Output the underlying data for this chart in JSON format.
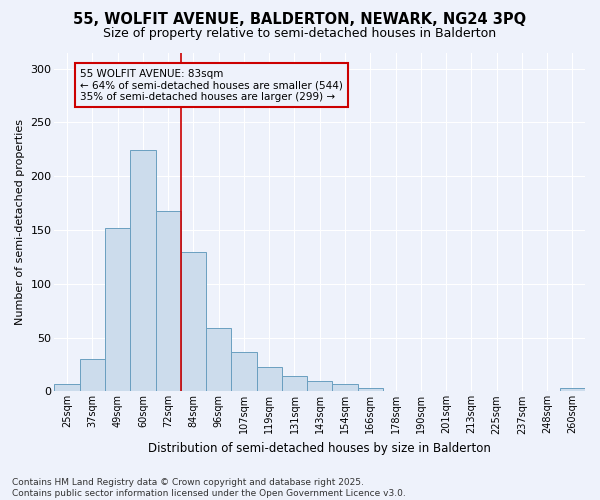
{
  "title_line1": "55, WOLFIT AVENUE, BALDERTON, NEWARK, NG24 3PQ",
  "title_line2": "Size of property relative to semi-detached houses in Balderton",
  "xlabel": "Distribution of semi-detached houses by size in Balderton",
  "ylabel": "Number of semi-detached properties",
  "categories": [
    "25sqm",
    "37sqm",
    "49sqm",
    "60sqm",
    "72sqm",
    "84sqm",
    "96sqm",
    "107sqm",
    "119sqm",
    "131sqm",
    "143sqm",
    "154sqm",
    "166sqm",
    "178sqm",
    "190sqm",
    "201sqm",
    "213sqm",
    "225sqm",
    "237sqm",
    "248sqm",
    "260sqm"
  ],
  "values": [
    7,
    30,
    152,
    224,
    168,
    130,
    59,
    37,
    23,
    14,
    10,
    7,
    3,
    0,
    0,
    0,
    0,
    0,
    0,
    0,
    3
  ],
  "bar_color": "#ccdcec",
  "bar_edge_color": "#6a9fc0",
  "vline_x": 4.5,
  "vline_color": "#cc0000",
  "annotation_box_text": "55 WOLFIT AVENUE: 83sqm\n← 64% of semi-detached houses are smaller (544)\n35% of semi-detached houses are larger (299) →",
  "annotation_box_color": "#cc0000",
  "ylim": [
    0,
    315
  ],
  "yticks": [
    0,
    50,
    100,
    150,
    200,
    250,
    300
  ],
  "footnote": "Contains HM Land Registry data © Crown copyright and database right 2025.\nContains public sector information licensed under the Open Government Licence v3.0.",
  "background_color": "#eef2fb",
  "grid_color": "#ffffff",
  "title_fontsize": 10.5,
  "subtitle_fontsize": 9,
  "annotation_fontsize": 7.5,
  "footnote_fontsize": 6.5,
  "ylabel_fontsize": 8,
  "xlabel_fontsize": 8.5
}
